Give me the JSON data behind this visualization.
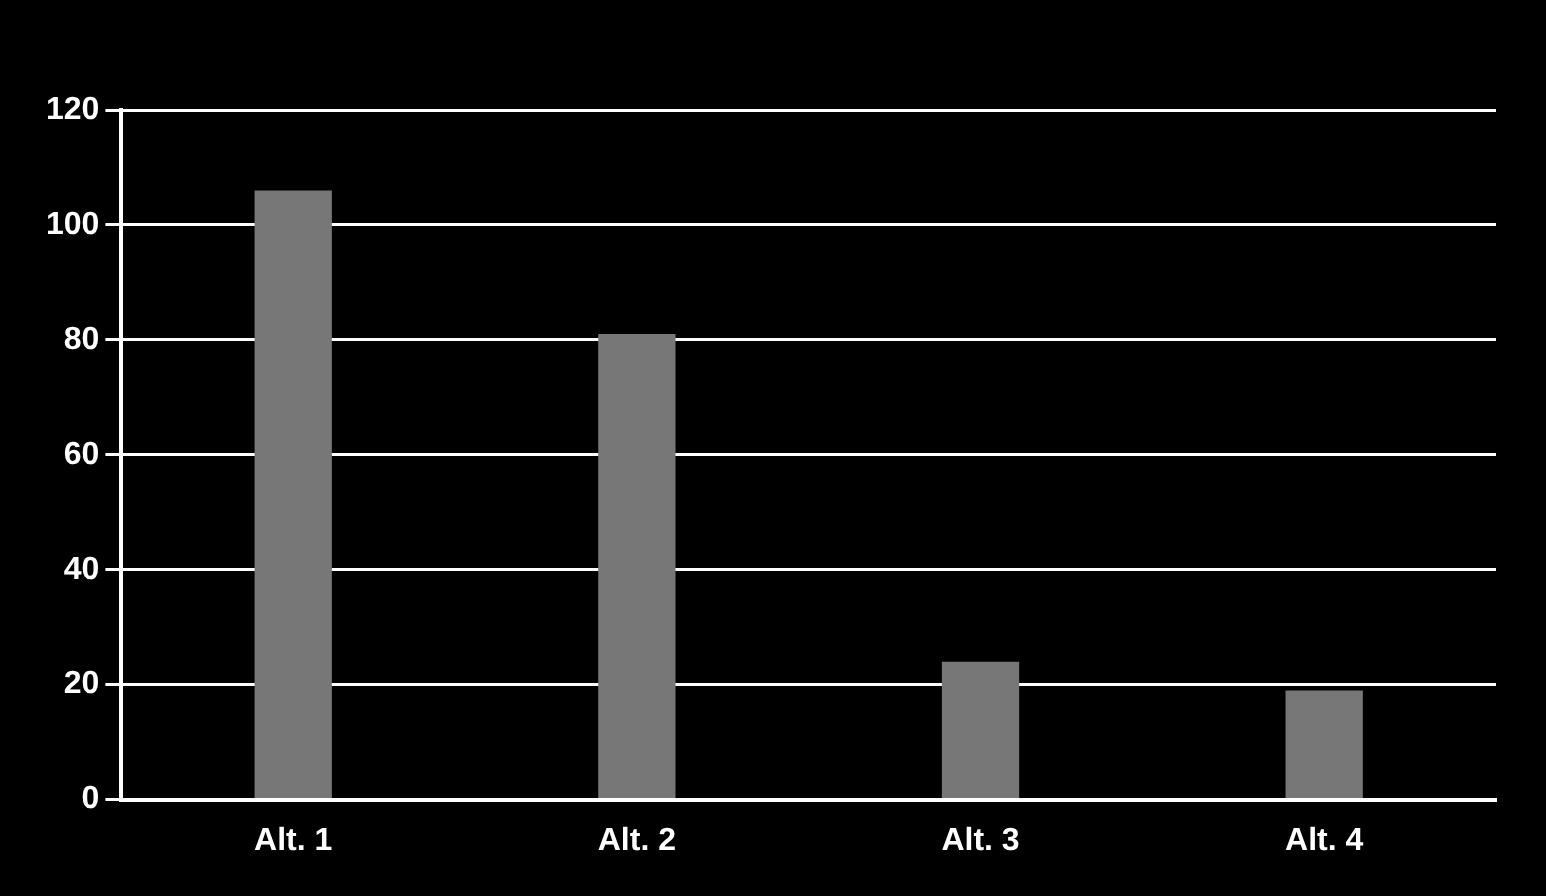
{
  "chart_data": {
    "type": "bar",
    "categories": [
      "Alt. 1",
      "Alt. 2",
      "Alt. 3",
      "Alt. 4"
    ],
    "values": [
      106,
      81,
      24,
      19
    ],
    "color": "#777777",
    "ylim": [
      0,
      120
    ],
    "yticks": [
      0,
      20,
      40,
      60,
      80,
      100,
      120
    ],
    "grid": "y"
  }
}
